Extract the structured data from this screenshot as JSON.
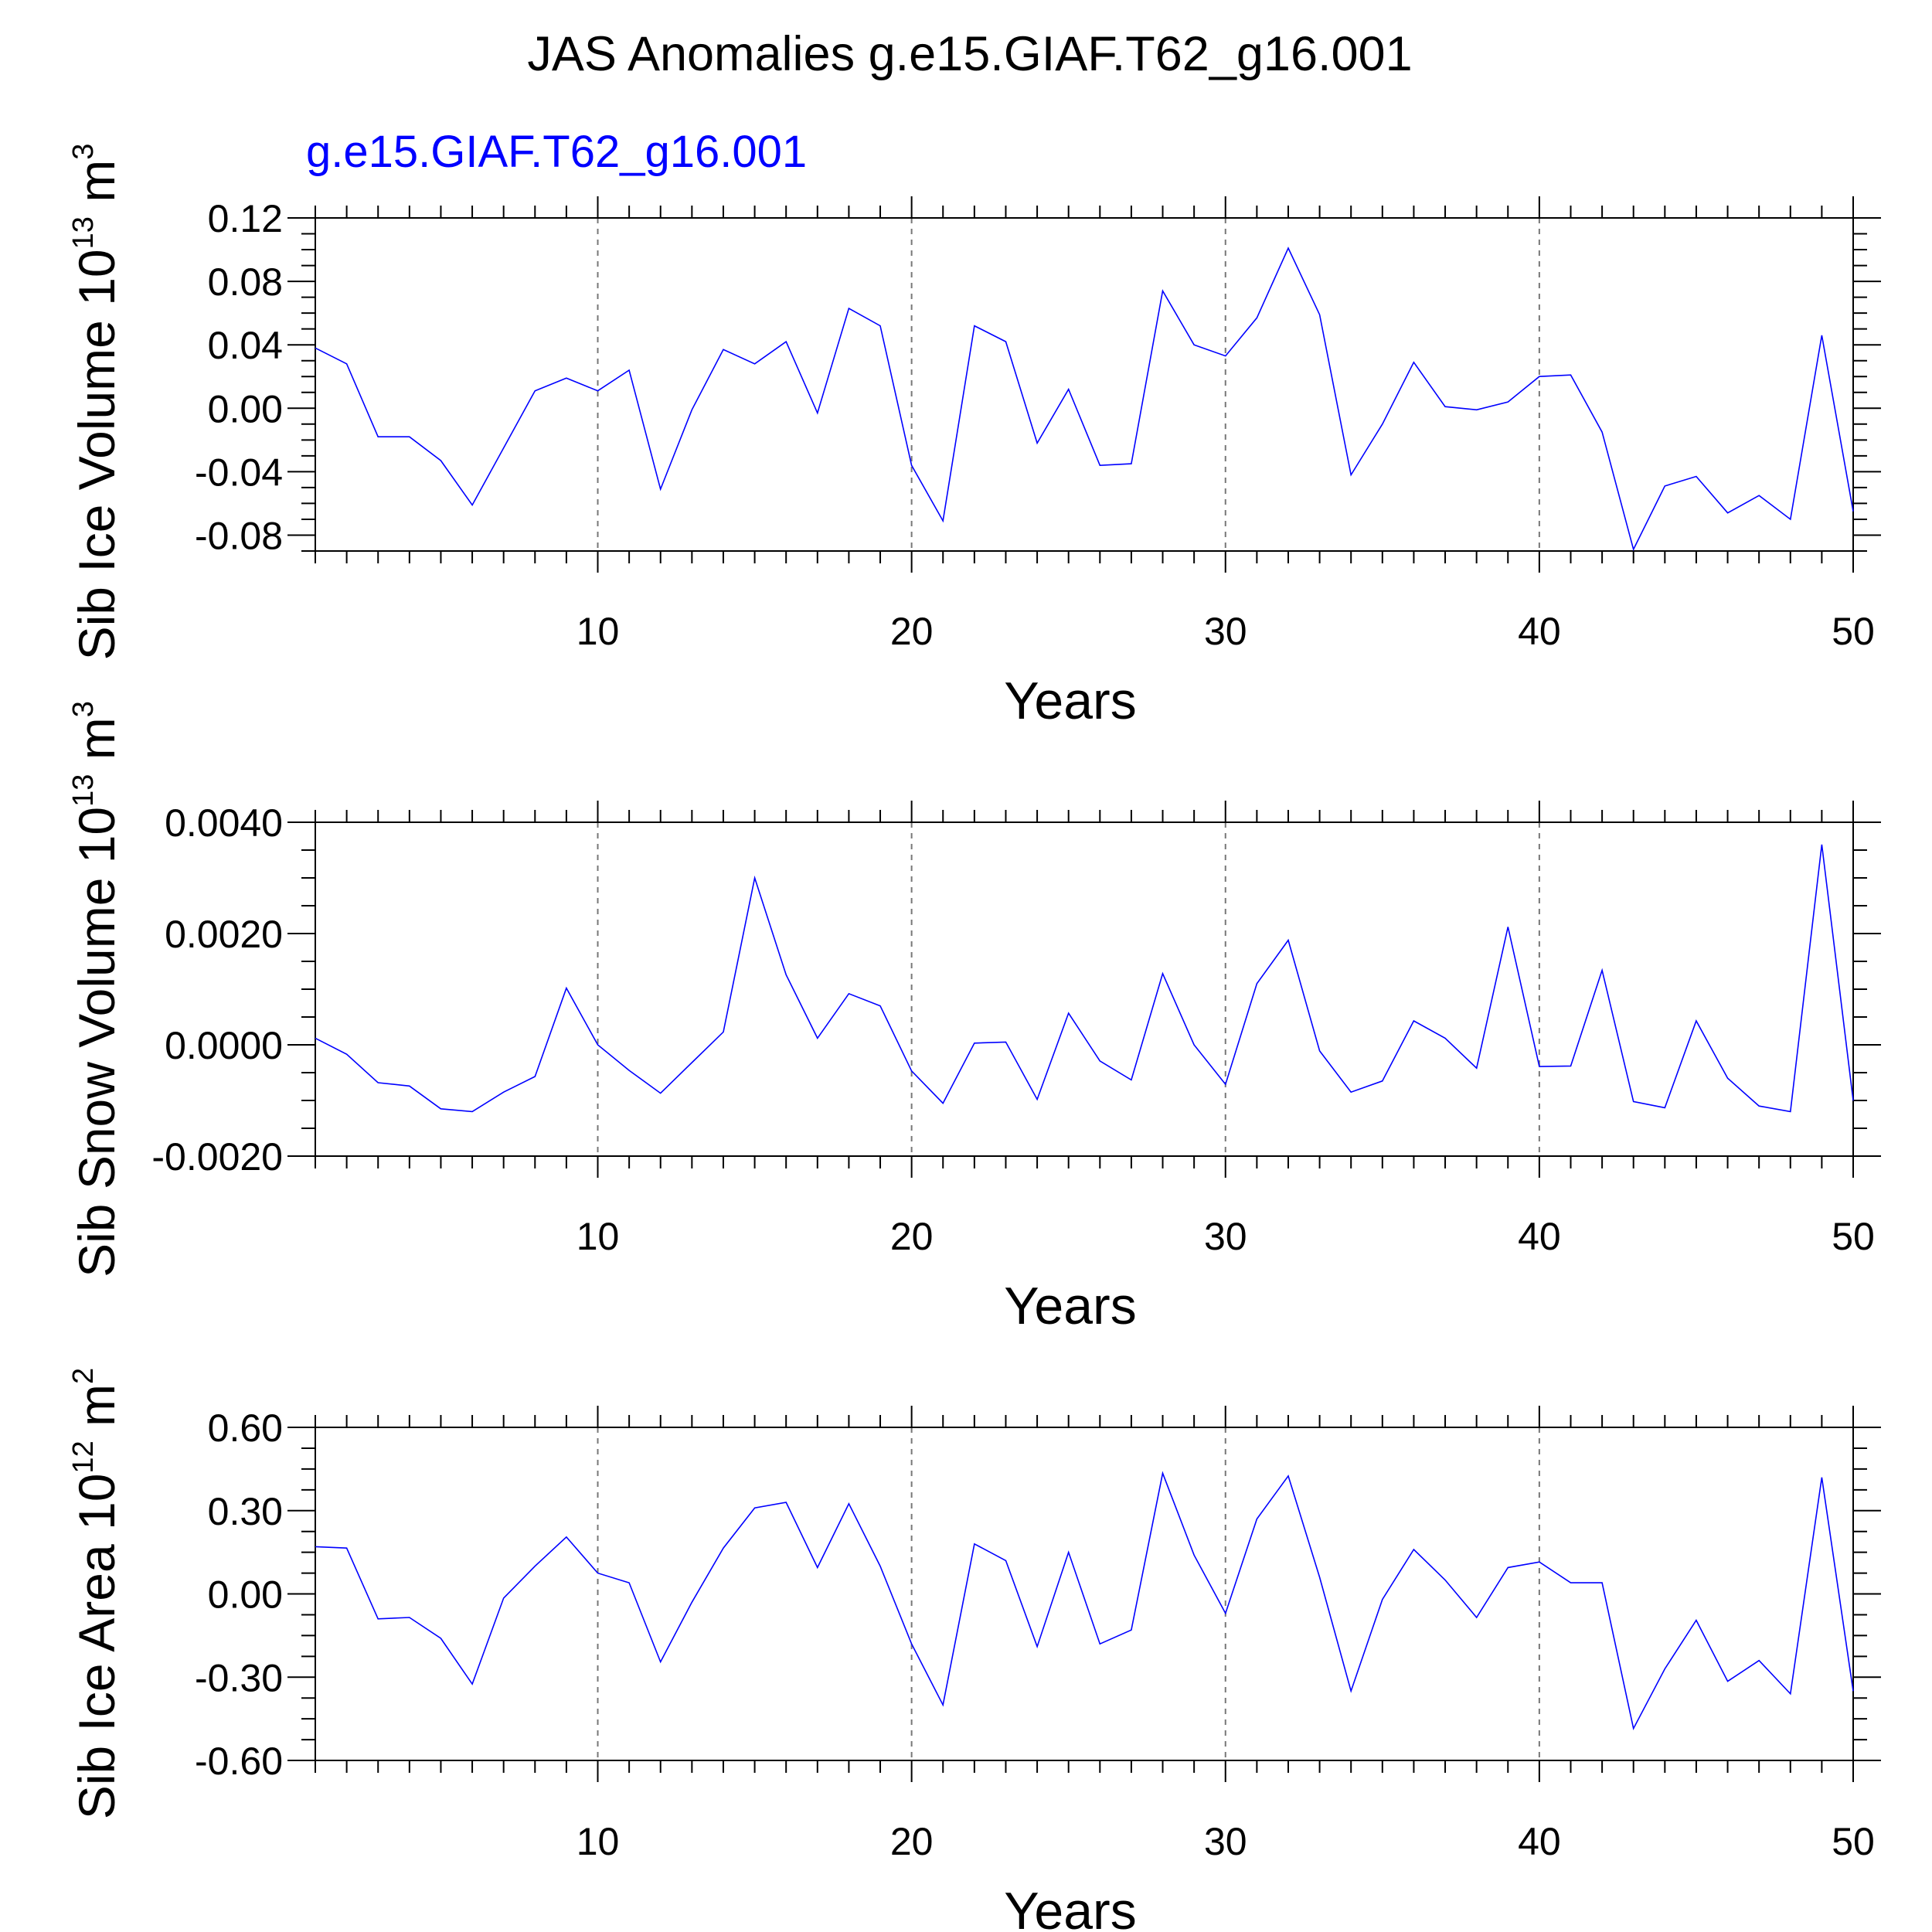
{
  "figure": {
    "title": "JAS Anomalies g.e15.GIAF.T62_g16.001",
    "subtitle": "g.e15.GIAF.T62_g16.001",
    "line_color": "#0000ff"
  },
  "chart_data": [
    {
      "type": "line",
      "xlabel": "Years",
      "ylabel": {
        "text": "Sib Ice Volume 10",
        "sup": "13",
        "unit": " m",
        "unit_sup": "3"
      },
      "xlim": [
        1,
        50
      ],
      "ylim": [
        -0.09,
        0.12
      ],
      "xticks": [
        10,
        20,
        30,
        40,
        50
      ],
      "yticks": [
        0.12,
        0.08,
        0.04,
        0.0,
        -0.04,
        -0.08
      ],
      "ytick_labels": [
        "0.12",
        "0.08",
        "0.04",
        "0.00",
        "-0.04",
        "-0.08"
      ],
      "grid_x": [
        10,
        20,
        30,
        40
      ],
      "x": [
        1,
        2,
        3,
        4,
        5,
        6,
        7,
        8,
        9,
        10,
        11,
        12,
        13,
        14,
        15,
        16,
        17,
        18,
        19,
        20,
        21,
        22,
        23,
        24,
        25,
        26,
        27,
        28,
        29,
        30,
        31,
        32,
        33,
        34,
        35,
        36,
        37,
        38,
        39,
        40,
        41,
        42,
        43,
        44,
        45,
        46,
        47,
        48,
        49,
        50
      ],
      "series": [
        {
          "values": [
            0.038,
            0.028,
            -0.018,
            -0.018,
            -0.033,
            -0.061,
            -0.025,
            0.011,
            0.019,
            0.011,
            0.024,
            -0.051,
            -0.001,
            0.037,
            0.028,
            0.042,
            -0.003,
            0.063,
            0.052,
            -0.036,
            -0.071,
            0.052,
            0.042,
            -0.022,
            0.012,
            -0.036,
            -0.035,
            0.074,
            0.04,
            0.033,
            0.057,
            0.101,
            0.059,
            -0.042,
            -0.01,
            0.029,
            0.001,
            -0.001,
            0.004,
            0.02,
            0.021,
            -0.015,
            -0.089,
            -0.049,
            -0.043,
            -0.066,
            -0.055,
            -0.07,
            0.046,
            -0.065
          ]
        }
      ]
    },
    {
      "type": "line",
      "xlabel": "Years",
      "ylabel": {
        "text": "Sib Snow Volume 10",
        "sup": "13",
        "unit": " m",
        "unit_sup": "3"
      },
      "xlim": [
        1,
        50
      ],
      "ylim": [
        -0.002,
        0.004
      ],
      "xticks": [
        10,
        20,
        30,
        40,
        50
      ],
      "yticks": [
        0.004,
        0.002,
        0.0,
        -0.002
      ],
      "ytick_labels": [
        "0.0040",
        "0.0020",
        "0.0000",
        "-0.0020"
      ],
      "grid_x": [
        10,
        20,
        30,
        40
      ],
      "x": [
        1,
        2,
        3,
        4,
        5,
        6,
        7,
        8,
        9,
        10,
        11,
        12,
        13,
        14,
        15,
        16,
        17,
        18,
        19,
        20,
        21,
        22,
        23,
        24,
        25,
        26,
        27,
        28,
        29,
        30,
        31,
        32,
        33,
        34,
        35,
        36,
        37,
        38,
        39,
        40,
        41,
        42,
        43,
        44,
        45,
        46,
        47,
        48,
        49,
        50
      ],
      "series": [
        {
          "values": [
            0.00012,
            -0.00017,
            -0.00068,
            -0.00074,
            -0.00115,
            -0.0012,
            -0.00085,
            -0.00057,
            0.00102,
            0.0,
            -0.00046,
            -0.00087,
            -0.00032,
            0.00023,
            0.003,
            0.00126,
            0.00012,
            0.00092,
            0.0007,
            -0.00047,
            -0.00105,
            3e-05,
            5e-05,
            -0.00098,
            0.00057,
            -0.00029,
            -0.00063,
            0.00128,
            0.0,
            -0.00071,
            0.0011,
            0.00188,
            -0.00011,
            -0.00085,
            -0.00065,
            0.00043,
            0.00012,
            -0.00042,
            0.00212,
            -0.00039,
            -0.00038,
            0.00134,
            -0.00102,
            -0.00113,
            0.00043,
            -0.0006,
            -0.0011,
            -0.0012,
            0.0036,
            -0.001
          ]
        }
      ]
    },
    {
      "type": "line",
      "xlabel": "Years",
      "ylabel": {
        "text": "Sib Ice Area 10",
        "sup": "12",
        "unit": " m",
        "unit_sup": "2"
      },
      "xlim": [
        1,
        50
      ],
      "ylim": [
        -0.6,
        0.6
      ],
      "xticks": [
        10,
        20,
        30,
        40,
        50
      ],
      "yticks": [
        0.6,
        0.3,
        0.0,
        -0.3,
        -0.6
      ],
      "ytick_labels": [
        "0.60",
        "0.30",
        "0.00",
        "-0.30",
        "-0.60"
      ],
      "grid_x": [
        10,
        20,
        30,
        40
      ],
      "x": [
        1,
        2,
        3,
        4,
        5,
        6,
        7,
        8,
        9,
        10,
        11,
        12,
        13,
        14,
        15,
        16,
        17,
        18,
        19,
        20,
        21,
        22,
        23,
        24,
        25,
        26,
        27,
        28,
        29,
        30,
        31,
        32,
        33,
        34,
        35,
        36,
        37,
        38,
        39,
        40,
        41,
        42,
        43,
        44,
        45,
        46,
        47,
        48,
        49,
        50
      ],
      "series": [
        {
          "values": [
            0.17,
            0.165,
            -0.09,
            -0.085,
            -0.16,
            -0.325,
            -0.015,
            0.1,
            0.205,
            0.075,
            0.04,
            -0.245,
            -0.03,
            0.165,
            0.31,
            0.33,
            0.095,
            0.325,
            0.1,
            -0.18,
            -0.4,
            0.18,
            0.12,
            -0.19,
            0.15,
            -0.18,
            -0.13,
            0.435,
            0.14,
            -0.07,
            0.27,
            0.425,
            0.06,
            -0.35,
            -0.02,
            0.16,
            0.05,
            -0.085,
            0.095,
            0.115,
            0.04,
            0.04,
            -0.485,
            -0.27,
            -0.095,
            -0.315,
            -0.24,
            -0.36,
            0.42,
            -0.35
          ]
        }
      ]
    }
  ]
}
